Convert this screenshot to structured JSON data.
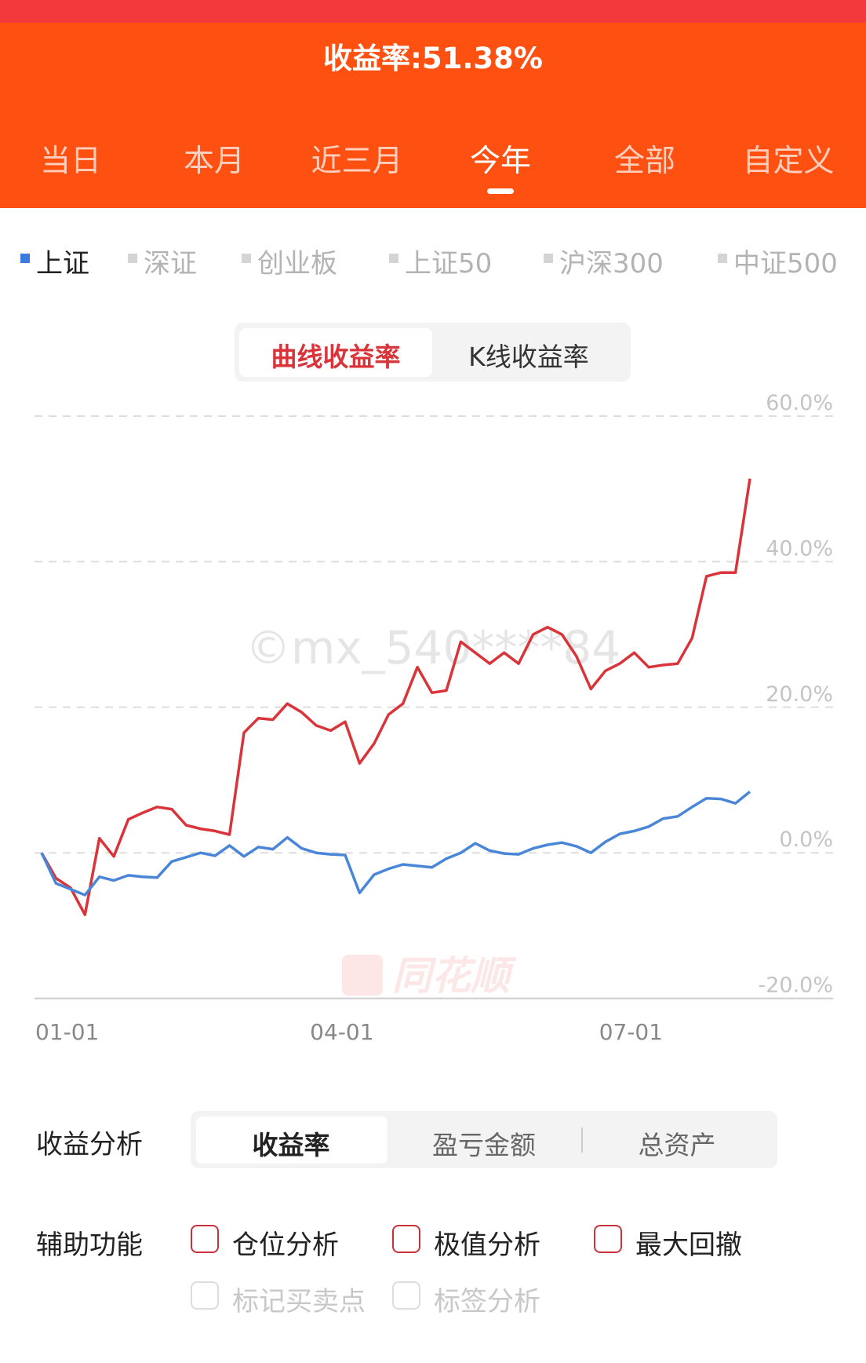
{
  "header": {
    "title": "收益率:51.38%",
    "tabs": [
      "当日",
      "本月",
      "近三月",
      "今年",
      "全部",
      "自定义"
    ],
    "active_tab": 3
  },
  "index_tabs": {
    "items": [
      "上证",
      "深证",
      "创业板",
      "上证50",
      "沪深300",
      "中证500"
    ],
    "active": 0
  },
  "chart_toggle": {
    "options": [
      "曲线收益率",
      "K线收益率"
    ],
    "active": 0
  },
  "chart_data": {
    "type": "line",
    "categories": [
      "01-01",
      null,
      null,
      null,
      null,
      null,
      null,
      null,
      null,
      null,
      null,
      null,
      null,
      null,
      null,
      null,
      null,
      null,
      null,
      "04-01",
      null,
      null,
      null,
      null,
      null,
      null,
      null,
      null,
      null,
      null,
      null,
      null,
      null,
      null,
      null,
      null,
      null,
      null,
      null,
      "07-01",
      null,
      null,
      null,
      null,
      null,
      null,
      null,
      null,
      null,
      null
    ],
    "series": [
      {
        "color": "#d9343a",
        "values": [
          0,
          -3.5,
          -4.8,
          -8.5,
          2,
          -0.5,
          4.6,
          5.5,
          6.3,
          6,
          3.8,
          3.3,
          3,
          2.5,
          16.5,
          18.5,
          18.3,
          20.5,
          19.3,
          17.5,
          16.8,
          18,
          12.3,
          15,
          19,
          20.5,
          25.5,
          22,
          22.3,
          29,
          27.5,
          26,
          27.5,
          26,
          30,
          31,
          30,
          27,
          22.5,
          25,
          26,
          27.5,
          25.5,
          25.8,
          26,
          29.5,
          38,
          38.5,
          38.5,
          51.4
        ]
      },
      {
        "color": "#4a86d8",
        "values": [
          0,
          -4.2,
          -5,
          -5.8,
          -3.3,
          -3.8,
          -3.1,
          -3.3,
          -3.4,
          -1.2,
          -0.6,
          0,
          -0.4,
          1,
          -0.5,
          0.8,
          0.5,
          2.1,
          0.6,
          0,
          -0.2,
          -0.3,
          -5.5,
          -3,
          -2.2,
          -1.6,
          -1.8,
          -2,
          -0.8,
          0,
          1.3,
          0.3,
          -0.1,
          -0.2,
          0.6,
          1.1,
          1.4,
          0.9,
          0,
          1.5,
          2.6,
          3,
          3.6,
          4.7,
          5,
          6.3,
          7.5,
          7.4,
          6.8,
          8.4
        ]
      }
    ],
    "ylim": [
      -20,
      60
    ],
    "yticks": [
      {
        "value": 60,
        "label": "60.0%"
      },
      {
        "value": 40,
        "label": "40.0%"
      },
      {
        "value": 20,
        "label": "20.0%"
      },
      {
        "value": 0,
        "label": "0.0%"
      },
      {
        "value": -20,
        "label": "-20.0%"
      }
    ],
    "grid": true
  },
  "watermarks": [
    "©mx_540****84",
    "同花顺"
  ],
  "analysis": {
    "label": "收益分析",
    "options": [
      "收益率",
      "盈亏金额",
      "总资产"
    ],
    "active": 0
  },
  "aux": {
    "label": "辅助功能",
    "options": [
      {
        "label": "仓位分析",
        "enabled": true
      },
      {
        "label": "极值分析",
        "enabled": true
      },
      {
        "label": "最大回撤",
        "enabled": true
      },
      {
        "label": "标记买卖点",
        "enabled": false
      },
      {
        "label": "标签分析",
        "enabled": false
      }
    ]
  }
}
